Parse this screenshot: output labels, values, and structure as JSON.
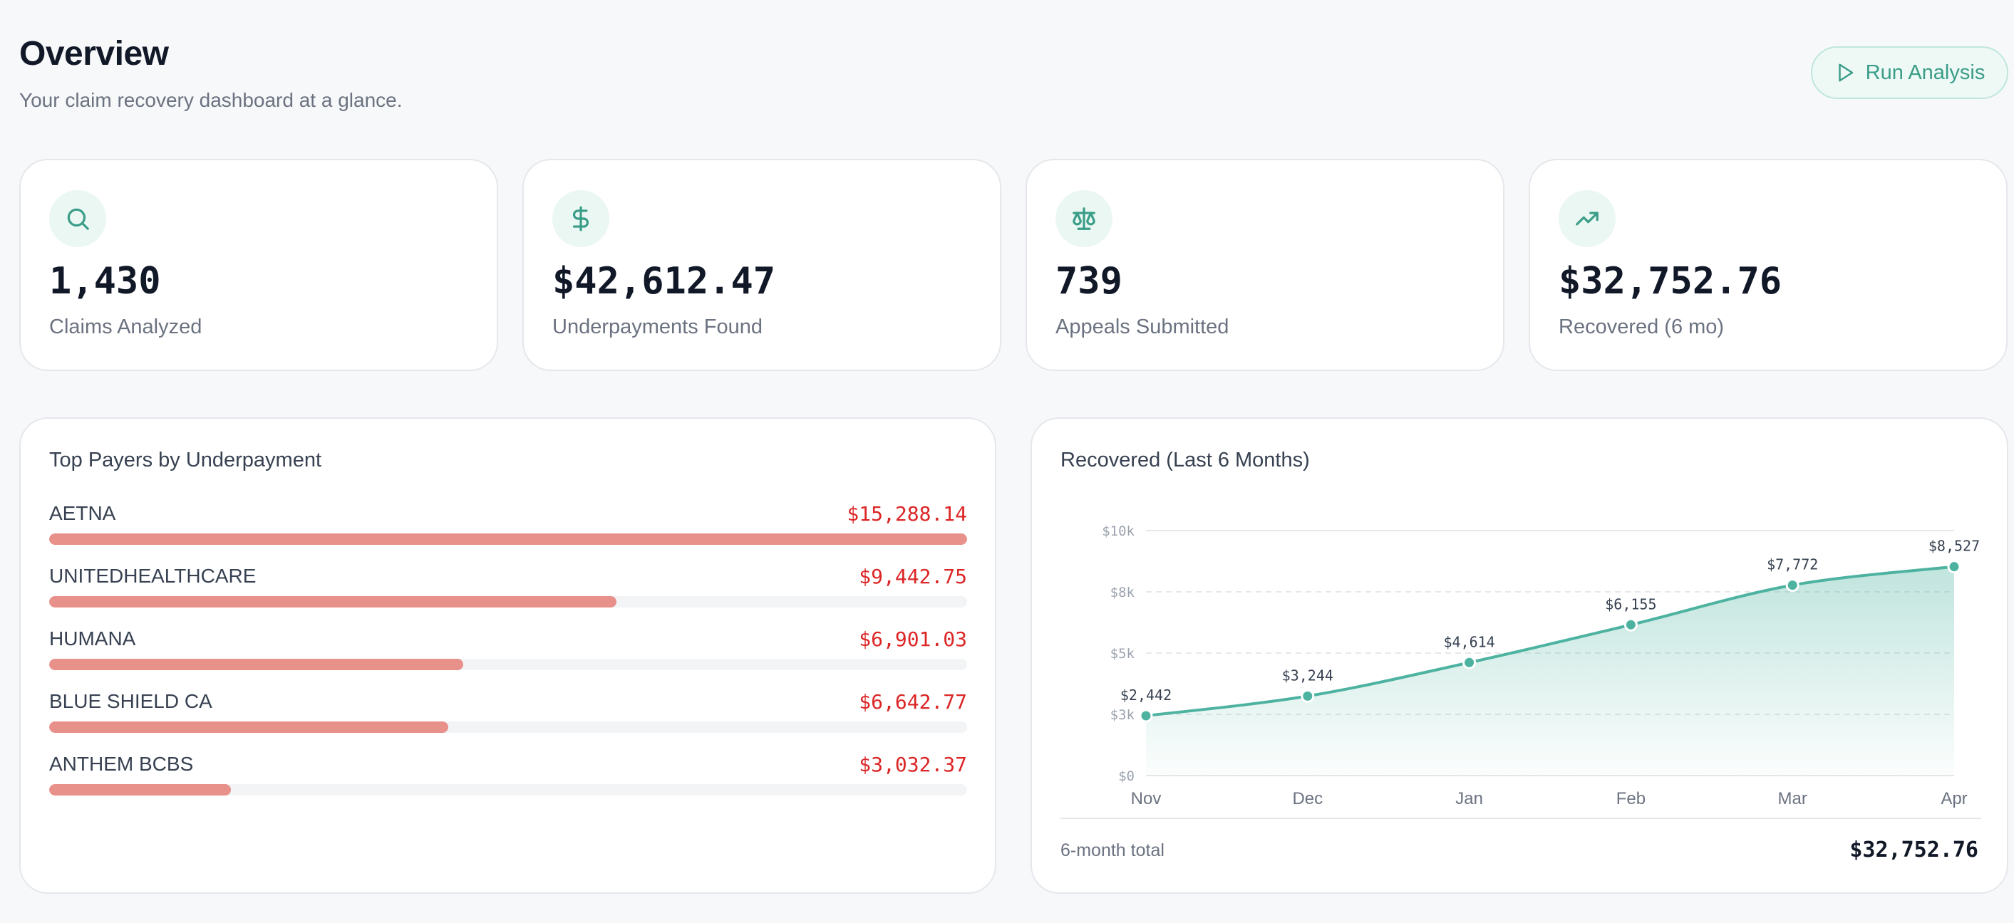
{
  "header": {
    "title": "Overview",
    "subtitle": "Your claim recovery dashboard at a glance.",
    "run_button_label": "Run Analysis"
  },
  "stats": [
    {
      "icon": "search-icon",
      "value": "1,430",
      "label": "Claims Analyzed"
    },
    {
      "icon": "dollar-icon",
      "value": "$42,612.47",
      "label": "Underpayments Found"
    },
    {
      "icon": "scale-icon",
      "value": "739",
      "label": "Appeals Submitted"
    },
    {
      "icon": "trending-up-icon",
      "value": "$32,752.76",
      "label": "Recovered (6 mo)"
    }
  ],
  "payers_panel": {
    "title": "Top Payers by Underpayment",
    "items": [
      {
        "name": "AETNA",
        "amount": "$15,288.14",
        "fraction": 1.0
      },
      {
        "name": "UNITEDHEALTHCARE",
        "amount": "$9,442.75",
        "fraction": 0.6177
      },
      {
        "name": "HUMANA",
        "amount": "$6,901.03",
        "fraction": 0.4514
      },
      {
        "name": "BLUE SHIELD CA",
        "amount": "$6,642.77",
        "fraction": 0.4345
      },
      {
        "name": "ANTHEM BCBS",
        "amount": "$3,032.37",
        "fraction": 0.1983
      }
    ]
  },
  "recovered_panel": {
    "title": "Recovered (Last 6 Months)",
    "footer_label": "6-month total",
    "footer_total": "$32,752.76"
  },
  "chart_data": {
    "type": "area",
    "title": "Recovered (Last 6 Months)",
    "categories": [
      "Nov",
      "Dec",
      "Jan",
      "Feb",
      "Mar",
      "Apr"
    ],
    "values": [
      2442,
      3244,
      4614,
      6155,
      7772,
      8527
    ],
    "data_labels": [
      "$2,442",
      "$3,244",
      "$4,614",
      "$6,155",
      "$7,772",
      "$8,527"
    ],
    "ylim": [
      0,
      10000
    ],
    "yticks": [
      0,
      2500,
      5000,
      7500,
      10000
    ],
    "ytick_labels": [
      "$0",
      "$3k",
      "$5k",
      "$8k",
      "$10k"
    ],
    "grid": true,
    "colors": {
      "line": "#4db3a0",
      "fill": "#4db3a0",
      "point": "#4db3a0"
    }
  },
  "colors": {
    "accent": "#3a9d88",
    "bar": "#e8918b",
    "amount": "#dc2626"
  }
}
